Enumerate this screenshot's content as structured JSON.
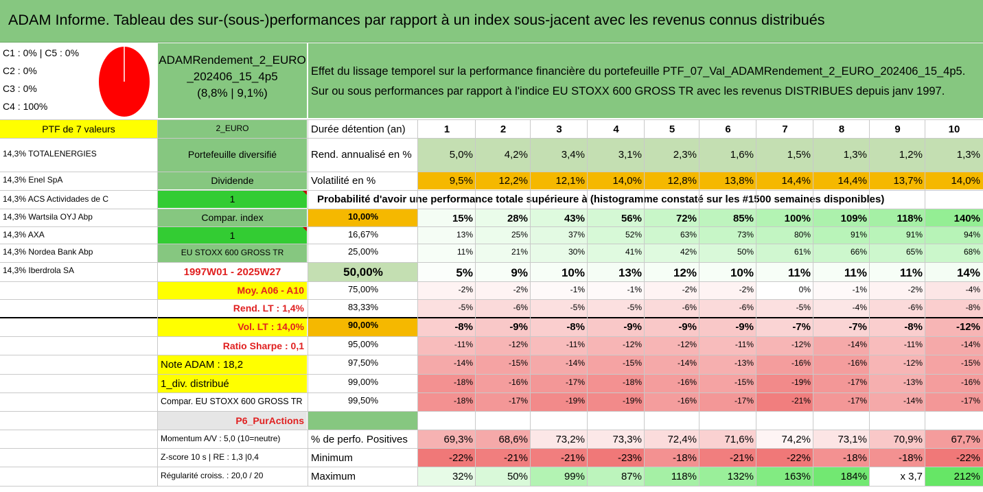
{
  "banner": "ADAM Informe. Tableau des sur-(sous-)performances par rapport à un index sous-jacent avec les revenus connus distribués",
  "classes": [
    "C1 : 0% | C5 : 0%",
    "C2 : 0%",
    "C3 : 0%",
    "C4 : 100%"
  ],
  "pie": {
    "colors": {
      "fill": "#ff0000",
      "stroke": "#ffffff"
    }
  },
  "fund": {
    "line1": "ADAMRendement_2_EURO",
    "line2": "_202406_15_4p5",
    "line3": "(8,8% | 9,1%)"
  },
  "effect": {
    "line1": "Effet du lissage temporel sur la performance financière du portefeuille PTF_07_Val_ADAMRendement_2_EURO_202406_15_4p5.",
    "line2": "Sur ou sous performances par rapport à l'indice EU STOXX 600 GROSS TR avec les revenus DISTRIBUES depuis janv 1997."
  },
  "left_col": [
    "PTF de 7 valeurs",
    "14,3% TOTALENERGIES",
    "14,3% Enel SpA",
    "14,3% ACS Actividades de C",
    "14,3% Wartsila OYJ Abp",
    "14,3% AXA",
    "14,3% Nordea Bank Abp",
    "14,3% Iberdrola SA"
  ],
  "mid_col": {
    "currency": "2_EURO",
    "diversified": "Portefeuille diversifié",
    "dividend": "Dividende",
    "one_a": "1",
    "compar_index": "Compar. index",
    "one_b": "1",
    "index_name": "EU STOXX 600 GROSS TR",
    "period": "1997W01 - 2025W27",
    "moy": "Moy. A06 - A10",
    "rend_lt": "Rend. LT : 1,4%",
    "vol_lt": "Vol. LT : 14,0%",
    "sharpe": "Ratio Sharpe : 0,1",
    "note": "Note ADAM : 18,2",
    "div": "1_div. distribué",
    "compar_full": "Compar. EU STOXX 600 GROSS TR",
    "p6": "P6_PurActions",
    "momentum": "Momentum A/V : 5,0 (10=neutre)",
    "zscore": "Z-score 10 s | RE : 1,3 |0,4",
    "regul": "Régularité croiss. : 20,0 / 20"
  },
  "header": {
    "label": "Durée détention (an)",
    "years": [
      "1",
      "2",
      "3",
      "4",
      "5",
      "6",
      "7",
      "8",
      "9",
      "10"
    ]
  },
  "rend": {
    "label": "Rend. annualisé en %",
    "values": [
      "5,0%",
      "4,2%",
      "3,4%",
      "3,1%",
      "2,3%",
      "1,6%",
      "1,5%",
      "1,3%",
      "1,2%",
      "1,3%"
    ]
  },
  "vol": {
    "label": "Volatilité en %",
    "values": [
      "9,5%",
      "12,2%",
      "12,1%",
      "14,0%",
      "12,8%",
      "13,8%",
      "14,4%",
      "14,4%",
      "13,7%",
      "14,0%"
    ]
  },
  "proba_title": "Probabilité d'avoir une performance totale supérieure à (histogramme constaté sur les #1500 semaines disponibles)",
  "quantiles": [
    {
      "p": "10,00%",
      "v": [
        "15%",
        "28%",
        "43%",
        "56%",
        "72%",
        "85%",
        "100%",
        "109%",
        "118%",
        "140%"
      ]
    },
    {
      "p": "16,67%",
      "v": [
        "13%",
        "25%",
        "37%",
        "52%",
        "63%",
        "73%",
        "80%",
        "91%",
        "91%",
        "94%"
      ]
    },
    {
      "p": "25,00%",
      "v": [
        "11%",
        "21%",
        "30%",
        "41%",
        "42%",
        "50%",
        "61%",
        "66%",
        "65%",
        "68%"
      ]
    },
    {
      "p": "50,00%",
      "v": [
        "5%",
        "9%",
        "10%",
        "13%",
        "12%",
        "10%",
        "11%",
        "11%",
        "11%",
        "14%"
      ]
    },
    {
      "p": "75,00%",
      "v": [
        "-2%",
        "-2%",
        "-1%",
        "-1%",
        "-2%",
        "-2%",
        "0%",
        "-1%",
        "-2%",
        "-4%"
      ]
    },
    {
      "p": "83,33%",
      "v": [
        "-5%",
        "-6%",
        "-5%",
        "-5%",
        "-6%",
        "-6%",
        "-5%",
        "-4%",
        "-6%",
        "-8%"
      ]
    },
    {
      "p": "90,00%",
      "v": [
        "-8%",
        "-9%",
        "-8%",
        "-9%",
        "-9%",
        "-9%",
        "-7%",
        "-7%",
        "-8%",
        "-12%"
      ]
    },
    {
      "p": "95,00%",
      "v": [
        "-11%",
        "-12%",
        "-11%",
        "-12%",
        "-12%",
        "-11%",
        "-12%",
        "-14%",
        "-11%",
        "-14%"
      ]
    },
    {
      "p": "97,50%",
      "v": [
        "-14%",
        "-15%",
        "-14%",
        "-15%",
        "-14%",
        "-13%",
        "-16%",
        "-16%",
        "-12%",
        "-15%"
      ]
    },
    {
      "p": "99,00%",
      "v": [
        "-18%",
        "-16%",
        "-17%",
        "-18%",
        "-16%",
        "-15%",
        "-19%",
        "-17%",
        "-13%",
        "-16%"
      ]
    },
    {
      "p": "99,50%",
      "v": [
        "-18%",
        "-17%",
        "-19%",
        "-19%",
        "-16%",
        "-17%",
        "-21%",
        "-17%",
        "-14%",
        "-17%"
      ]
    }
  ],
  "stats": [
    {
      "label": "% de perfo. Positives",
      "v": [
        "69,3%",
        "68,6%",
        "73,2%",
        "73,3%",
        "72,4%",
        "71,6%",
        "74,2%",
        "73,1%",
        "70,9%",
        "67,7%"
      ]
    },
    {
      "label": "Minimum",
      "v": [
        "-22%",
        "-21%",
        "-21%",
        "-23%",
        "-18%",
        "-21%",
        "-22%",
        "-18%",
        "-18%",
        "-22%"
      ]
    },
    {
      "label": "Maximum",
      "v": [
        "32%",
        "50%",
        "99%",
        "87%",
        "118%",
        "132%",
        "163%",
        "184%",
        "x 3,7",
        "212%"
      ]
    }
  ],
  "palette": {
    "green": "#86c780",
    "yellow": "#ffff00",
    "orange": "#f5b800",
    "bright_green": "#33cc33",
    "red_text": "#e02020"
  }
}
